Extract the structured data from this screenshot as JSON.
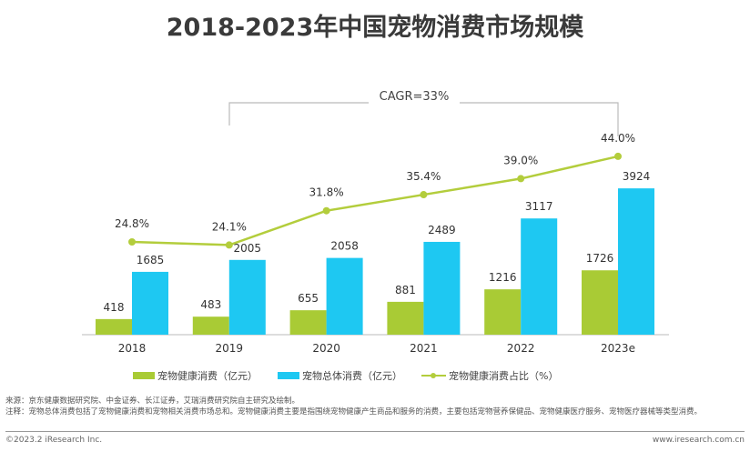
{
  "chart_data": {
    "type": "bar+line",
    "title": "2018-2023年中国宠物消费市场规模",
    "categories": [
      "2018",
      "2019",
      "2020",
      "2021",
      "2022",
      "2023e"
    ],
    "series": [
      {
        "name": "宠物健康消费（亿元）",
        "type": "bar",
        "color": "#a9cb35",
        "values": [
          418,
          483,
          655,
          881,
          1216,
          1726
        ]
      },
      {
        "name": "宠物总体消费（亿元）",
        "type": "bar",
        "color": "#1ec8f2",
        "values": [
          1685,
          2005,
          2058,
          2489,
          3117,
          3924
        ]
      },
      {
        "name": "宠物健康消费占比（%）",
        "type": "line",
        "color": "#b3cd3c",
        "values": [
          24.8,
          24.1,
          31.8,
          35.4,
          39.0,
          44.0
        ],
        "labels": [
          "24.8%",
          "24.1%",
          "31.8%",
          "35.4%",
          "39.0%",
          "44.0%"
        ]
      }
    ],
    "annotation": "CAGR=33%",
    "legend_position": "bottom"
  },
  "notes": {
    "source": "来源：京东健康数据研究院、中金证券、长江证券，艾瑞消费研究院自主研究及绘制。",
    "note": "注释：宠物总体消费包括了宠物健康消费和宠物相关消费市场总和。宠物健康消费主要是指围绕宠物健康产生商品和服务的消费，主要包括宠物营养保健品、宠物健康医疗服务、宠物医疗器械等类型消费。",
    "copyright": "©2023.2 iResearch Inc.",
    "website": "www.iresearch.com.cn"
  }
}
